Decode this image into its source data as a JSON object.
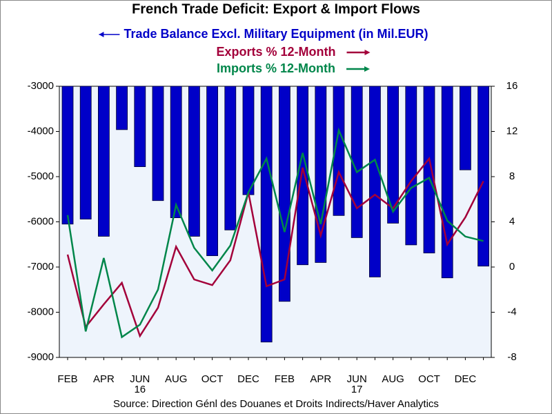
{
  "chart_data": {
    "type": "bar_line_dual",
    "title": "French Trade Deficit: Export & Import Flows",
    "source": "Source:  Direction Génl des Douanes et Droits Indirects/Haver Analytics",
    "categories": [
      "FEB",
      null,
      "APR",
      null,
      "JUN",
      null,
      "AUG",
      null,
      "OCT",
      null,
      "DEC",
      null,
      "FEB",
      null,
      "APR",
      null,
      "JUN",
      null,
      "AUG",
      null,
      "OCT",
      null,
      "DEC",
      null
    ],
    "category_years": [
      null,
      null,
      null,
      null,
      "16",
      null,
      null,
      null,
      null,
      null,
      null,
      null,
      null,
      null,
      null,
      null,
      "17",
      null,
      null,
      null,
      null,
      null,
      null,
      null
    ],
    "series": [
      {
        "name": "Trade Balance Excl. Military Equipment (in Mil.EUR)",
        "color": "#0000c8",
        "axis": "y",
        "values": [
          -6050,
          -5940,
          -6320,
          -3960,
          -4780,
          -5530,
          -5910,
          -6320,
          -6750,
          -6180,
          -5400,
          -8660,
          -7760,
          -6950,
          -6900,
          -5860,
          -6350,
          -7220,
          -6030,
          -6510,
          -6690,
          -7240,
          -4850,
          -6980
        ]
      },
      {
        "name": "Exports % 12-Month",
        "color": "#a3003a",
        "axis": "y2",
        "values": [
          1.1,
          -5.3,
          -3.3,
          -1.4,
          -6.1,
          -3.6,
          1.8,
          -1.1,
          -1.6,
          0.6,
          6.6,
          -1.7,
          -1.1,
          8.8,
          2.8,
          8.4,
          5.2,
          6.4,
          5.2,
          7.6,
          9.6,
          2.0,
          4.4,
          7.6
        ]
      },
      {
        "name": "Imports % 12-Month",
        "color": "#00864a",
        "axis": "y2",
        "values": [
          4.6,
          -5.7,
          0.8,
          -6.2,
          -5.1,
          -2.0,
          5.5,
          1.7,
          -0.3,
          1.9,
          6.6,
          9.6,
          3.1,
          10.1,
          3.8,
          12.1,
          8.4,
          9.5,
          4.9,
          7.0,
          7.9,
          4.1,
          2.7,
          2.3
        ]
      }
    ],
    "ylim": [
      -9000,
      -3000
    ],
    "yticks": [
      -3000,
      -4000,
      -5000,
      -6000,
      -7000,
      -8000,
      -9000
    ],
    "y2lim": [
      -8,
      16
    ],
    "y2ticks": [
      16,
      12,
      8,
      4,
      0,
      -4,
      -8
    ]
  }
}
